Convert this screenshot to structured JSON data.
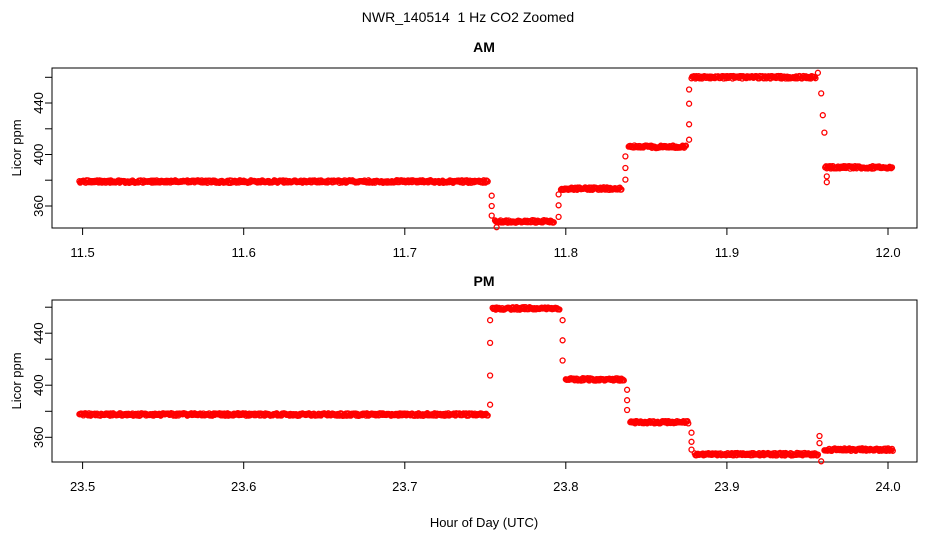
{
  "figure": {
    "title": "NWR_140514  1 Hz CO2 Zoomed"
  },
  "chart_data": [
    {
      "type": "scatter",
      "title": "AM",
      "ylabel": "Licor ppm",
      "xlabel": "",
      "marker": "open-circle",
      "color": "#FF0000",
      "xlim": [
        11.481,
        12.018
      ],
      "ylim": [
        342.9,
        467.2
      ],
      "grid": false,
      "legend": "none",
      "xticks": [
        {
          "v": 11.5,
          "label": "11.5"
        },
        {
          "v": 11.6,
          "label": "11.6"
        },
        {
          "v": 11.7,
          "label": "11.7"
        },
        {
          "v": 11.8,
          "label": "11.8"
        },
        {
          "v": 11.9,
          "label": "11.9"
        },
        {
          "v": 12.0,
          "label": "12.0"
        }
      ],
      "yticks": [
        {
          "v": 360,
          "label": "360"
        },
        {
          "v": 380,
          "label": ""
        },
        {
          "v": 400,
          "label": "400"
        },
        {
          "v": 420,
          "label": ""
        },
        {
          "v": 440,
          "label": "440"
        },
        {
          "v": 460,
          "label": ""
        }
      ],
      "sample_step_hr": 0.0005,
      "noise_ppm": 1.0,
      "segments": [
        {
          "x0": 11.498,
          "x1": 11.752,
          "y": 379
        },
        {
          "x0": 11.756,
          "x1": 11.793,
          "y": 348
        },
        {
          "x0": 11.797,
          "x1": 11.835,
          "y": 373.5
        },
        {
          "x0": 11.839,
          "x1": 11.875,
          "y": 406
        },
        {
          "x0": 11.878,
          "x1": 11.9555,
          "y": 460
        },
        {
          "x0": 11.961,
          "x1": 12.003,
          "y": 390
        }
      ],
      "transition_points": [
        {
          "x": 11.754,
          "ys": [
            368,
            360,
            352.5
          ]
        },
        {
          "x": 11.757,
          "ys": [
            343.5
          ]
        },
        {
          "x": 11.7955,
          "ys": [
            369,
            360.5,
            351.5
          ]
        },
        {
          "x": 11.837,
          "ys": [
            380.5,
            389.5,
            398.5
          ]
        },
        {
          "x": 11.8765,
          "ys": [
            411.5,
            423.5,
            439.5,
            450.5
          ]
        },
        {
          "x": 11.9565,
          "ys": [
            463.5
          ]
        },
        {
          "x": 11.9585,
          "ys": [
            447.5
          ]
        },
        {
          "x": 11.9595,
          "ys": [
            430.5
          ]
        },
        {
          "x": 11.9605,
          "ys": [
            417
          ]
        },
        {
          "x": 11.962,
          "ys": [
            383,
            378.5
          ]
        }
      ]
    },
    {
      "type": "scatter",
      "title": "PM",
      "ylabel": "Licor ppm",
      "xlabel": "Hour of Day (UTC)",
      "marker": "open-circle",
      "color": "#FF0000",
      "xlim": [
        23.481,
        24.018
      ],
      "ylim": [
        341,
        465.5
      ],
      "grid": false,
      "legend": "none",
      "xticks": [
        {
          "v": 23.5,
          "label": "23.5"
        },
        {
          "v": 23.6,
          "label": "23.6"
        },
        {
          "v": 23.7,
          "label": "23.7"
        },
        {
          "v": 23.8,
          "label": "23.8"
        },
        {
          "v": 23.9,
          "label": "23.9"
        },
        {
          "v": 24.0,
          "label": "24.0"
        }
      ],
      "yticks": [
        {
          "v": 360,
          "label": "360"
        },
        {
          "v": 380,
          "label": ""
        },
        {
          "v": 400,
          "label": "400"
        },
        {
          "v": 420,
          "label": ""
        },
        {
          "v": 440,
          "label": "440"
        },
        {
          "v": 460,
          "label": ""
        }
      ],
      "sample_step_hr": 0.0005,
      "noise_ppm": 1.0,
      "segments": [
        {
          "x0": 23.498,
          "x1": 23.7515,
          "y": 377.5
        },
        {
          "x0": 23.7545,
          "x1": 23.796,
          "y": 459
        },
        {
          "x0": 23.8,
          "x1": 23.836,
          "y": 404.5
        },
        {
          "x0": 23.84,
          "x1": 23.876,
          "y": 371.5
        },
        {
          "x0": 23.88,
          "x1": 23.9565,
          "y": 347
        },
        {
          "x0": 23.9605,
          "x1": 24.003,
          "y": 350.5
        }
      ],
      "transition_points": [
        {
          "x": 23.753,
          "ys": [
            385,
            407.5,
            432.5,
            450
          ]
        },
        {
          "x": 23.798,
          "ys": [
            450,
            434.5,
            419
          ]
        },
        {
          "x": 23.838,
          "ys": [
            396.5,
            388.5,
            381
          ]
        },
        {
          "x": 23.878,
          "ys": [
            363.5,
            356.5,
            350.5
          ]
        },
        {
          "x": 23.9575,
          "ys": [
            361,
            355.5
          ]
        },
        {
          "x": 23.9585,
          "ys": [
            341.5
          ]
        }
      ]
    }
  ]
}
